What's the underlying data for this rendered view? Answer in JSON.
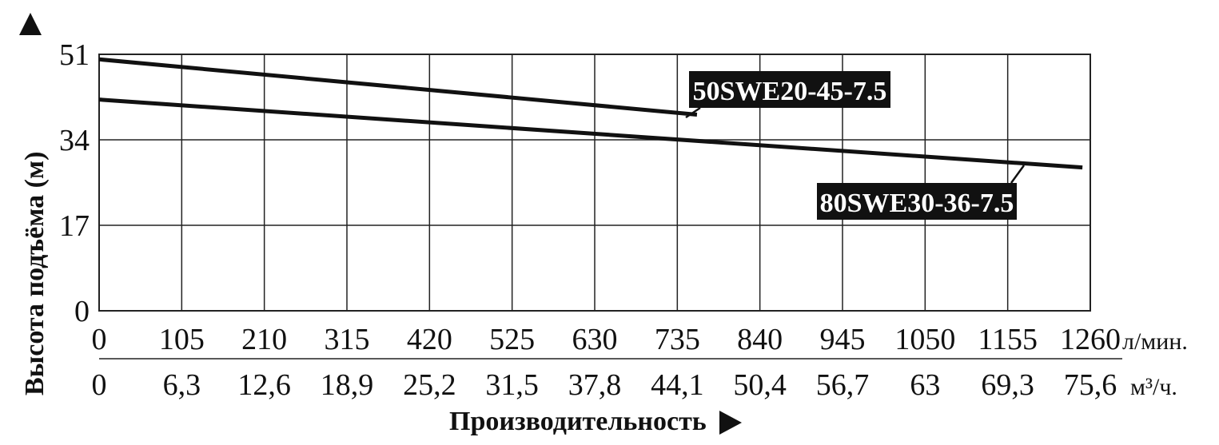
{
  "chart_data": {
    "type": "line",
    "ylabel": "Высота подъёма (м)",
    "xlabel": "Производительность",
    "x_unit_primary": "л/мин.",
    "x_unit_secondary": "м³/ч.",
    "x_ticks_primary": [
      "0",
      "105",
      "210",
      "315",
      "420",
      "525",
      "630",
      "735",
      "840",
      "945",
      "1050",
      "1155",
      "1260"
    ],
    "x_ticks_secondary": [
      "0",
      "6,3",
      "12,6",
      "18,9",
      "25,2",
      "31,5",
      "37,8",
      "44,1",
      "50,4",
      "56,7",
      "63",
      "69,3",
      "75,6"
    ],
    "y_ticks": [
      "0",
      "17",
      "34",
      "51"
    ],
    "xlim": [
      0,
      1260
    ],
    "ylim": [
      0,
      51
    ],
    "grid": true,
    "series": [
      {
        "name": "50SWE20-45-7.5",
        "x": [
          0,
          760
        ],
        "y": [
          50,
          39
        ]
      },
      {
        "name": "80SWE30-36-7.5",
        "x": [
          0,
          1250
        ],
        "y": [
          42,
          28.5
        ]
      }
    ],
    "colors": {
      "line": "#111111",
      "label_bg": "#111111",
      "label_text": "#ffffff",
      "grid": "#222222"
    }
  }
}
